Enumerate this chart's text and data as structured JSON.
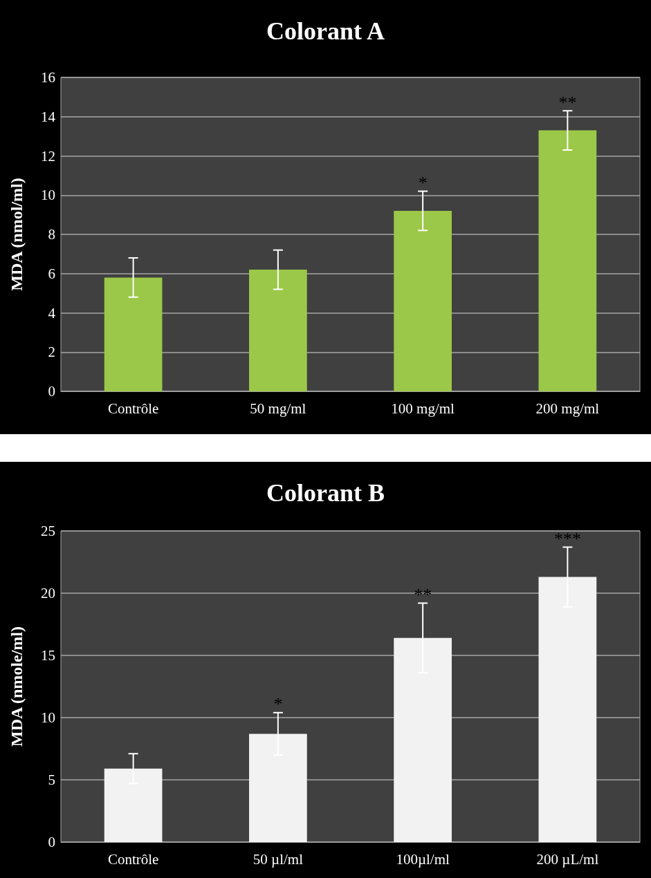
{
  "chart_data": [
    {
      "type": "bar",
      "title": "Colorant A",
      "ylabel": "MDA (nmol/ml)",
      "categories": [
        "Contrôle",
        "50 mg/ml",
        "100 mg/ml",
        "200 mg/ml"
      ],
      "values": [
        5.8,
        6.2,
        9.2,
        13.3
      ],
      "errors": [
        1.0,
        1.0,
        1.0,
        1.0
      ],
      "color": "#9bc848",
      "ylim": [
        0,
        16
      ],
      "yticks": [
        0,
        2,
        4,
        6,
        8,
        10,
        12,
        14,
        16
      ],
      "grid": "y",
      "annotations": [
        "*",
        "**"
      ]
    },
    {
      "type": "bar",
      "title": "Colorant B",
      "ylabel": "MDA (nmole/ml)",
      "categories": [
        "Contrôle",
        "50 µl/ml",
        "100µl/ml",
        "200 µL/ml"
      ],
      "values": [
        5.9,
        8.7,
        16.4,
        21.3
      ],
      "errors": [
        1.2,
        1.7,
        2.8,
        2.4
      ],
      "color": "#f2f2f2",
      "ylim": [
        0,
        25
      ],
      "yticks": [
        0,
        5,
        10,
        15,
        20,
        25
      ],
      "grid": "y",
      "annotations": [
        "*",
        "**",
        "***"
      ]
    }
  ]
}
